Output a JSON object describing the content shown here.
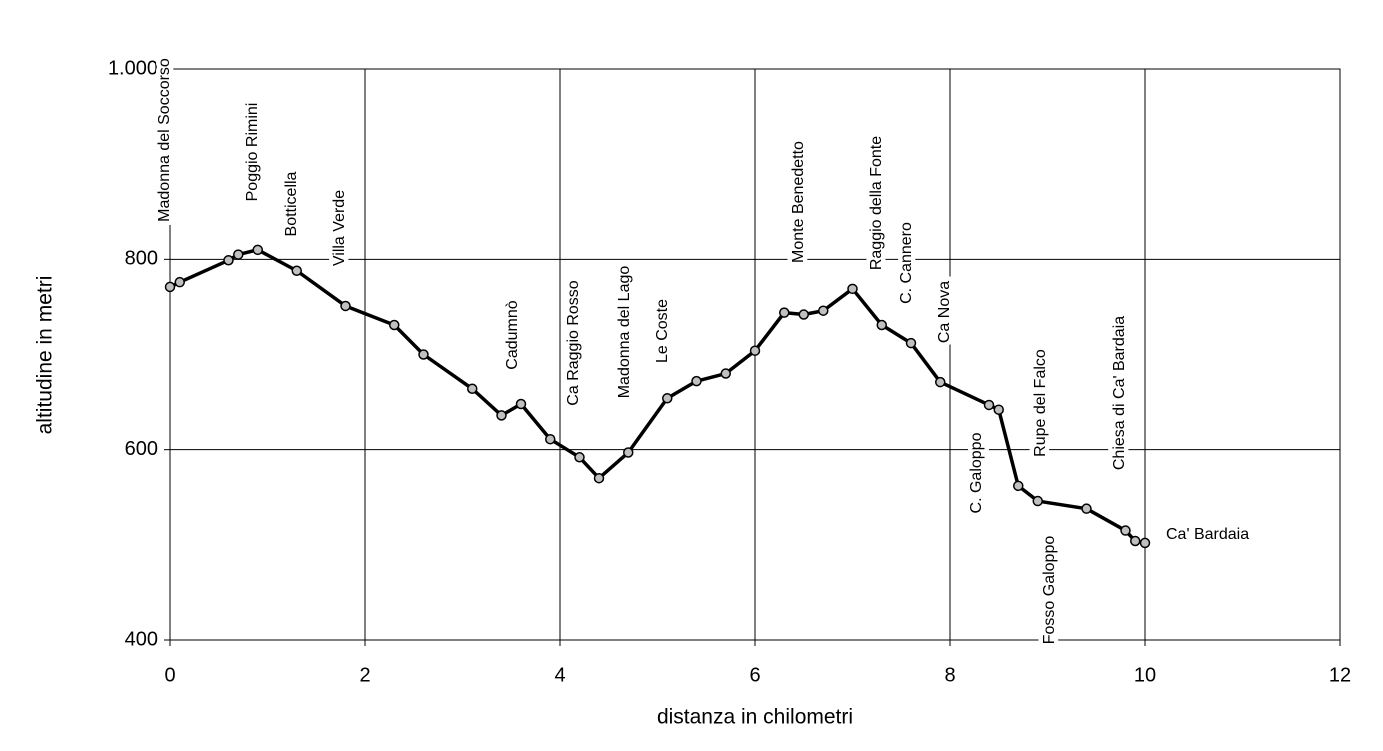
{
  "chart_data": {
    "type": "line",
    "xlabel": "distanza in chilometri",
    "ylabel": "altitudine  in metri",
    "x": [
      0,
      0.1,
      0.6,
      0.7,
      0.9,
      1.3,
      1.8,
      2.3,
      2.6,
      3.1,
      3.4,
      3.6,
      3.9,
      4.2,
      4.4,
      4.7,
      5.1,
      5.4,
      5.7,
      6.0,
      6.3,
      6.5,
      6.7,
      7.0,
      7.3,
      7.6,
      7.9,
      8.4,
      8.5,
      8.7,
      8.9,
      9.4,
      9.8,
      9.9,
      10.0
    ],
    "series": [
      {
        "color": "#000000",
        "marker_color": "#c0c0c0",
        "values": [
          771,
          776,
          799,
          805,
          810,
          788,
          751,
          731,
          700,
          664,
          636,
          648,
          611,
          592,
          570,
          597,
          654,
          672,
          680,
          704,
          744,
          742,
          746,
          769,
          731,
          712,
          671,
          647,
          642,
          562,
          546,
          538,
          515,
          504,
          502
        ]
      }
    ],
    "xlim": [
      0,
      12
    ],
    "xticks": [
      0,
      2,
      4,
      6,
      8,
      10,
      12
    ],
    "ylim": [
      400,
      1000
    ],
    "yticks": [
      400,
      600,
      800,
      {
        "value": 1000,
        "label": "1.000"
      }
    ],
    "grid": true,
    "annotations": [
      "Madonna del Soccorso",
      "Poggio Rimini",
      "Botticella",
      "Villa Verde",
      "Cadumnò",
      "Ca Raggio Rosso",
      "Madonna del Lago",
      "Le Coste",
      "Monte Benedetto",
      "Raggio della Fonte",
      "C. Cannero",
      "Ca Nova",
      "C. Galoppo",
      "Rupe del Falco",
      "Fosso Galoppo",
      "Chiesa di Ca' Bardaia",
      "Ca' Bardaia"
    ]
  }
}
